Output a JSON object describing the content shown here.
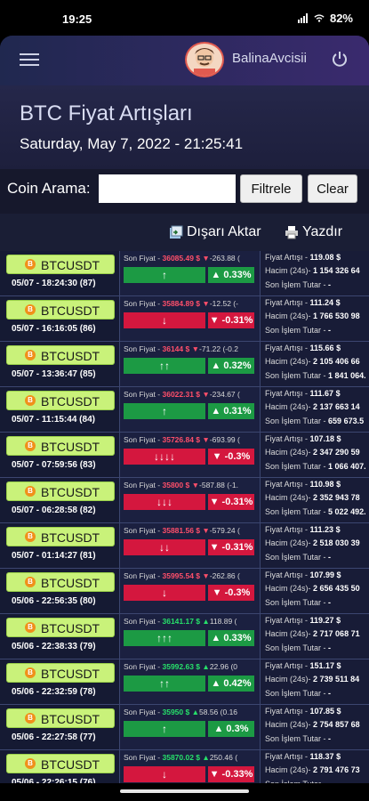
{
  "status_bar": {
    "time": "19:25",
    "battery": "82"
  },
  "app": {
    "username": "BalinaAvcisii"
  },
  "page": {
    "title": "BTC Fiyat Artışları",
    "date": "Saturday, May 7, 2022 - 21:25:41"
  },
  "search": {
    "label": "Coin Arama:",
    "value": "",
    "filter_button": "Filtrele",
    "clear_button": "Clear"
  },
  "toolbar": {
    "export": "Dışarı Aktar",
    "print": "Yazdır"
  },
  "labels": {
    "last_price": "Son Fiyat -",
    "price_increase": "Fiyat Artışı -",
    "volume": "Hacim (24s)-",
    "last_trade": "Son İşlem Tutar -"
  },
  "colors": {
    "up": "#1c9a44",
    "down": "#d4173e",
    "coin_badge": "#c9f27a"
  },
  "rows": [
    {
      "symbol": "BTCUSDT",
      "time": "05/07 - 18:24:30",
      "count": "(87)",
      "price": "36085.49 $",
      "dir": "down",
      "change": "-263.88 (",
      "arrows": "↑",
      "arrow_dir": "up",
      "pct": "▲ 0.33%",
      "increase": "119.08 $",
      "volume": "1 154 326 64",
      "trade": "-"
    },
    {
      "symbol": "BTCUSDT",
      "time": "05/07 - 16:16:05",
      "count": "(86)",
      "price": "35884.89 $",
      "dir": "down",
      "change": "-12.52 (-",
      "arrows": "↓",
      "arrow_dir": "down",
      "pct": "▼ -0.31%",
      "increase": "111.24 $",
      "volume": "1 766 530 98",
      "trade": "-"
    },
    {
      "symbol": "BTCUSDT",
      "time": "05/07 - 13:36:47",
      "count": "(85)",
      "price": "36144 $",
      "dir": "down",
      "change": "-71.22 (-0.2",
      "arrows": "↑↑",
      "arrow_dir": "up",
      "pct": "▲ 0.32%",
      "increase": "115.66 $",
      "volume": "2 105 406 66",
      "trade": "1 841 064."
    },
    {
      "symbol": "BTCUSDT",
      "time": "05/07 - 11:15:44",
      "count": "(84)",
      "price": "36022.31 $",
      "dir": "down",
      "change": "-234.67 (",
      "arrows": "↑",
      "arrow_dir": "up",
      "pct": "▲ 0.31%",
      "increase": "111.67 $",
      "volume": "2 137 663 14",
      "trade": "659 673.5"
    },
    {
      "symbol": "BTCUSDT",
      "time": "05/07 - 07:59:56",
      "count": "(83)",
      "price": "35726.84 $",
      "dir": "down",
      "change": "-693.99 (",
      "arrows": "↓↓↓↓",
      "arrow_dir": "down",
      "pct": "▼ -0.3%",
      "increase": "107.18 $",
      "volume": "2 347 290 59",
      "trade": "1 066 407."
    },
    {
      "symbol": "BTCUSDT",
      "time": "05/07 - 06:28:58",
      "count": "(82)",
      "price": "35800 $",
      "dir": "down",
      "change": "-587.88 (-1.",
      "arrows": "↓↓↓",
      "arrow_dir": "down",
      "pct": "▼ -0.31%",
      "increase": "110.98 $",
      "volume": "2 352 943 78",
      "trade": "5 022 492."
    },
    {
      "symbol": "BTCUSDT",
      "time": "05/07 - 01:14:27",
      "count": "(81)",
      "price": "35881.56 $",
      "dir": "down",
      "change": "-579.24 (",
      "arrows": "↓↓",
      "arrow_dir": "down",
      "pct": "▼ -0.31%",
      "increase": "111.23 $",
      "volume": "2 518 030 39",
      "trade": "-"
    },
    {
      "symbol": "BTCUSDT",
      "time": "05/06 - 22:56:35",
      "count": "(80)",
      "price": "35995.54 $",
      "dir": "down",
      "change": "-262.86 (",
      "arrows": "↓",
      "arrow_dir": "down",
      "pct": "▼ -0.3%",
      "increase": "107.99 $",
      "volume": "2 656 435 50",
      "trade": "-"
    },
    {
      "symbol": "BTCUSDT",
      "time": "05/06 - 22:38:33",
      "count": "(79)",
      "price": "36141.17 $",
      "dir": "up",
      "change": "118.89 (",
      "arrows": "↑↑↑",
      "arrow_dir": "up",
      "pct": "▲ 0.33%",
      "increase": "119.27 $",
      "volume": "2 717 068 71",
      "trade": "-"
    },
    {
      "symbol": "BTCUSDT",
      "time": "05/06 - 22:32:59",
      "count": "(78)",
      "price": "35992.63 $",
      "dir": "up",
      "change": "22.96 (0",
      "arrows": "↑↑",
      "arrow_dir": "up",
      "pct": "▲ 0.42%",
      "increase": "151.17 $",
      "volume": "2 739 511 84",
      "trade": "-"
    },
    {
      "symbol": "BTCUSDT",
      "time": "05/06 - 22:27:58",
      "count": "(77)",
      "price": "35950 $",
      "dir": "up",
      "change": "58.56 (0.16",
      "arrows": "↑",
      "arrow_dir": "up",
      "pct": "▲ 0.3%",
      "increase": "107.85 $",
      "volume": "2 754 857 68",
      "trade": "-"
    },
    {
      "symbol": "BTCUSDT",
      "time": "05/06 - 22:26:15",
      "count": "(76)",
      "price": "35870.02 $",
      "dir": "up",
      "change": "250.46 (",
      "arrows": "↓",
      "arrow_dir": "down",
      "pct": "▼ -0.33%",
      "increase": "118.37 $",
      "volume": "2 791 476 73",
      "trade": "-"
    }
  ]
}
